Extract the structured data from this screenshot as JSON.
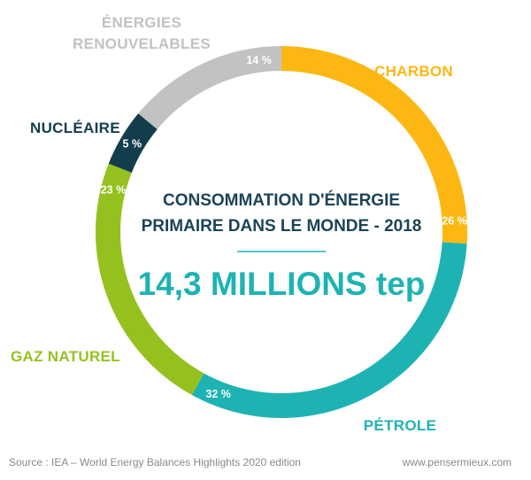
{
  "chart_data": {
    "type": "pie",
    "title": "CONSOMMATION D'ÉNERGIE PRIMAIRE DANS LE MONDE - 2018",
    "title_lines": [
      "CONSOMMATION D'ÉNERGIE",
      "PRIMAIRE DANS LE MONDE - 2018"
    ],
    "total": "14,3 MILLIONS tep",
    "slices": [
      {
        "label": "CHARBON",
        "label_lines": [
          "CHARBON"
        ],
        "value": 26,
        "value_label": "26 %",
        "color": "#fcb713"
      },
      {
        "label": "PÉTROLE",
        "label_lines": [
          "PÉTROLE"
        ],
        "value": 32,
        "value_label": "32 %",
        "color": "#1eb3b3"
      },
      {
        "label": "GAZ NATUREL",
        "label_lines": [
          "GAZ NATUREL"
        ],
        "value": 23,
        "value_label": "23 %",
        "color": "#95c11f"
      },
      {
        "label": "NUCLÉAIRE",
        "label_lines": [
          "NUCLÉAIRE"
        ],
        "value": 5,
        "value_label": "5 %",
        "color": "#123d4c"
      },
      {
        "label": "ÉNERGIES RENOUVELABLES",
        "label_lines": [
          "ÉNERGIES",
          "RENOUVELABLES"
        ],
        "value": 14,
        "value_label": "14 %",
        "color": "#c2c2c2"
      }
    ]
  },
  "footer": {
    "source": "Source : IEA – World Energy Balances Highlights 2020 edition",
    "site": "www.pensermieux.com"
  }
}
